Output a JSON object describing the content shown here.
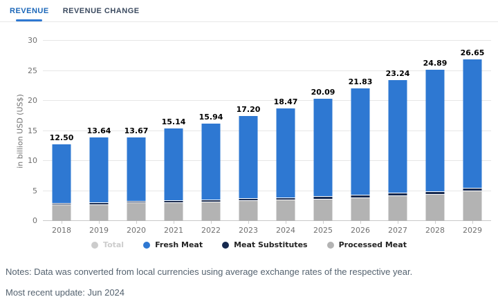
{
  "tabs": {
    "revenue": "REVENUE",
    "revenue_change": "REVENUE CHANGE"
  },
  "notes": {
    "line1": "Notes: Data was converted from local currencies using average exchange rates of the respective year.",
    "line2": "Most recent update: Jun 2024"
  },
  "colors": {
    "accent_tab_active": "#1a66b8",
    "tab_inactive": "#3b4a5f",
    "fresh_meat_blue": "#2e78d2",
    "meat_substitutes_navy": "#16294f",
    "processed_meat_gray": "#b3b3b3",
    "disabled_legend_gray": "#cccccc",
    "gridline": "#e6e6e6",
    "axis_label": "#707070",
    "note_text": "#54626f"
  },
  "chart_data": {
    "type": "bar",
    "stacked": true,
    "title": "",
    "xlabel": "",
    "ylabel": "in billion USD (US$)",
    "ylim": [
      0,
      30
    ],
    "yticks": [
      0,
      5,
      10,
      15,
      20,
      25,
      30
    ],
    "grid": true,
    "legend_position": "bottom",
    "categories": [
      "2018",
      "2019",
      "2020",
      "2021",
      "2022",
      "2023",
      "2024",
      "2025",
      "2026",
      "2027",
      "2028",
      "2029"
    ],
    "totals_labels": [
      "12.50",
      "13.64",
      "13.67",
      "15.14",
      "15.94",
      "17.20",
      "18.47",
      "20.09",
      "21.83",
      "23.24",
      "24.89",
      "26.65"
    ],
    "series": [
      {
        "name": "Processed Meat",
        "color": "#b3b3b3",
        "values": [
          2.6,
          2.7,
          3.0,
          3.0,
          3.1,
          3.3,
          3.4,
          3.6,
          3.8,
          4.1,
          4.4,
          4.9
        ]
      },
      {
        "name": "Meat Substitutes",
        "color": "#16294f",
        "values": [
          0.12,
          0.14,
          0.15,
          0.17,
          0.19,
          0.21,
          0.24,
          0.27,
          0.3,
          0.33,
          0.36,
          0.4
        ]
      },
      {
        "name": "Fresh Meat",
        "color": "#2e78d2",
        "values": [
          9.78,
          10.8,
          10.52,
          11.97,
          12.65,
          13.69,
          14.83,
          16.22,
          17.73,
          18.81,
          20.13,
          21.35
        ]
      }
    ],
    "legend": [
      {
        "label": "Total",
        "color": "#cccccc",
        "disabled": true
      },
      {
        "label": "Fresh Meat",
        "color": "#2e78d2",
        "disabled": false
      },
      {
        "label": "Meat Substitutes",
        "color": "#16294f",
        "disabled": false
      },
      {
        "label": "Processed Meat",
        "color": "#b3b3b3",
        "disabled": false
      }
    ]
  }
}
